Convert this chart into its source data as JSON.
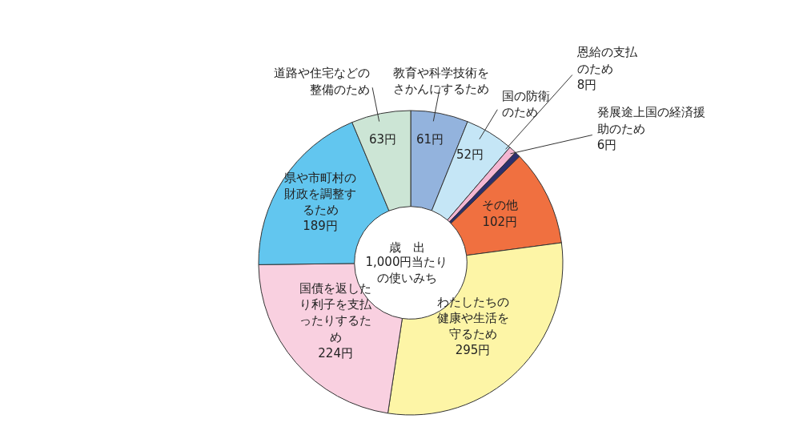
{
  "chart_data": {
    "type": "donut",
    "title": "歳　出",
    "subtitle": "1,000円当たりの使いみち",
    "categories": [
      "教育や科学技術をさかんにするため",
      "国の防衛のため",
      "恩給の支払のため",
      "発展途上国の経済援助のため",
      "その他",
      "わたしたちの健康や生活を守るため",
      "国債を返したり利子を支払ったりするため",
      "県や市町村の財政を調整するため",
      "道路や住宅などの整備のため"
    ],
    "values": [
      61,
      52,
      8,
      6,
      102,
      295,
      224,
      189,
      63
    ],
    "value_labels": [
      "61円",
      "52円",
      "8円",
      "6円",
      "102円",
      "295円",
      "224円",
      "189円",
      "63円"
    ],
    "colors": [
      "#93b3dd",
      "#c5e6f6",
      "#f4b6d2",
      "#2d2f6e",
      "#f07040",
      "#fdf5a6",
      "#f9d0e0",
      "#62c6ef",
      "#cce5d5"
    ],
    "data_labels": false
  }
}
